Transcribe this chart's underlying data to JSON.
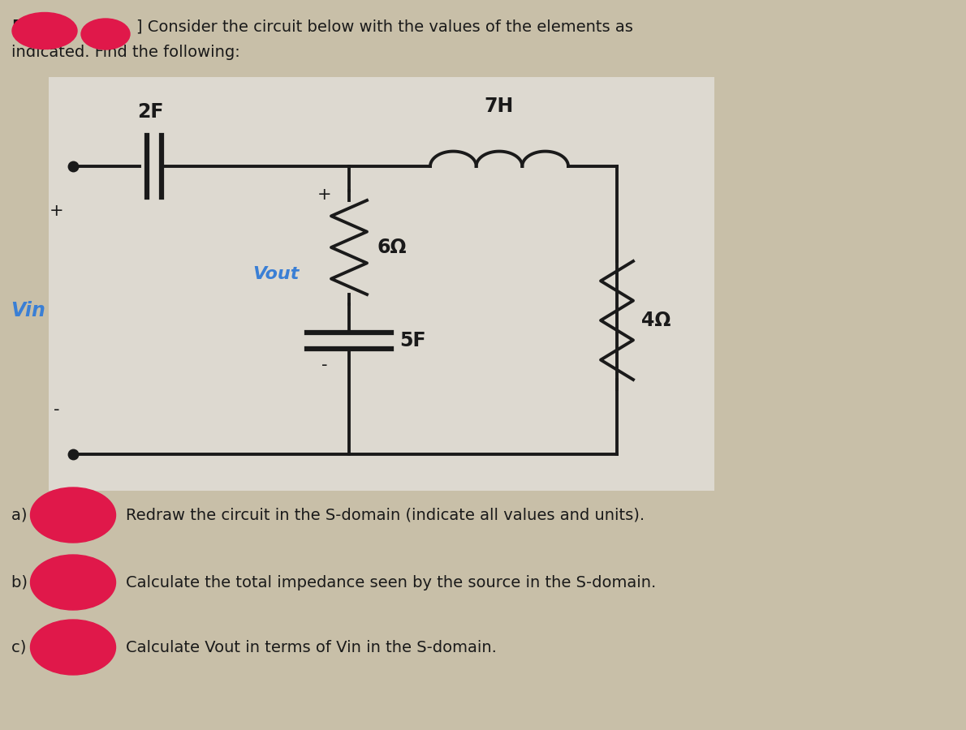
{
  "bg_color": "#c8bfa8",
  "circuit_bg": "#e8e4dc",
  "text_color": "#1a1a1a",
  "circuit_color": "#1a1a1a",
  "blue_color": "#3a7fd5",
  "cap_2F_label": "2F",
  "ind_7H_label": "7H",
  "res_6_label": "6Ω",
  "res_4_label": "4Ω",
  "cap_5F_label": "5F",
  "vin_label": "Vin",
  "vout_label": "Vout",
  "plus_top": "+",
  "minus_bot": "-",
  "plus_vout": "+",
  "minus_vout": "-",
  "part_a": "Redraw the circuit in the S-domain (indicate all values and units).",
  "part_b": "Calculate the total impedance seen by the source in the S-domain.",
  "part_c": "Calculate Vout in terms of Vin in the S-domain.",
  "redblob_color": "#e0184a",
  "figsize": [
    11.9,
    9.0
  ],
  "dpi": 100
}
